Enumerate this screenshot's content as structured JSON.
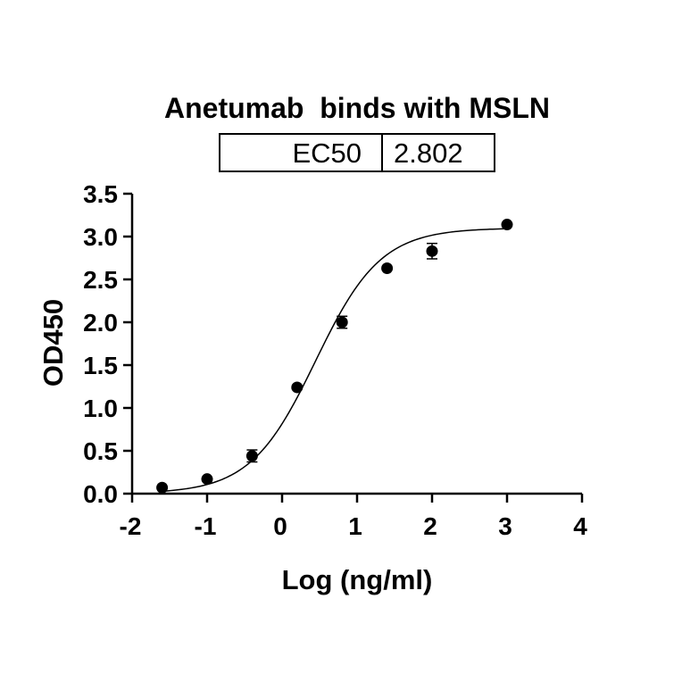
{
  "chart_data": {
    "type": "scatter",
    "title": "Anetumab  binds with MSLN",
    "ec50_table": {
      "label": "EC50",
      "value": "2.802"
    },
    "xlabel": "Log (ng/ml)",
    "ylabel": "OD450",
    "xlim": [
      -2,
      4
    ],
    "ylim": [
      0,
      3.5
    ],
    "x_ticks": [
      "-2",
      "-1",
      "0",
      "1",
      "2",
      "3",
      "4"
    ],
    "y_ticks": [
      "0.0",
      "0.5",
      "1.0",
      "1.5",
      "2.0",
      "2.5",
      "3.0",
      "3.5"
    ],
    "grid": false,
    "series": [
      {
        "x": [
          -1.6,
          -1.0,
          -0.4,
          0.2,
          0.8,
          1.4,
          2.0,
          3.0
        ],
        "y": [
          0.07,
          0.17,
          0.44,
          1.24,
          2.0,
          2.63,
          2.83,
          3.14
        ],
        "error": [
          0.0,
          0.0,
          0.07,
          0.0,
          0.07,
          0.0,
          0.09,
          0.0
        ]
      }
    ],
    "fit": {
      "type": "4PL",
      "bottom": 0.0,
      "top": 3.1,
      "logEC50": 0.4475,
      "hill": 1.0
    }
  },
  "colors": {
    "marker": "#000000",
    "line": "#000000",
    "background": "#ffffff"
  }
}
